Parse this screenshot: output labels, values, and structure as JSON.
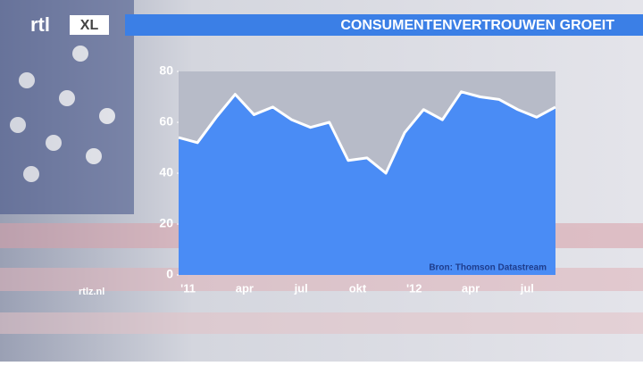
{
  "logo": {
    "main": "rtl",
    "badge": "XL"
  },
  "website": "rtlz.nl",
  "chart_data": {
    "type": "area",
    "title": "CONSUMENTENVERTROUWEN GROEIT",
    "source": "Bron: Thomson Datastream",
    "categories": [
      "'11",
      null,
      null,
      "apr",
      null,
      null,
      "jul",
      null,
      null,
      "okt",
      null,
      null,
      "'12",
      null,
      null,
      "apr",
      null,
      null,
      "jul",
      null,
      null
    ],
    "values": [
      54,
      52,
      62,
      71,
      63,
      66,
      61,
      58,
      60,
      45,
      46,
      40,
      56,
      65,
      61,
      72,
      70,
      69,
      65,
      62,
      66
    ],
    "color": "#4a8cf5",
    "line_color": "#ffffff",
    "ylim": [
      0,
      80
    ],
    "yticks": [
      0,
      20,
      40,
      60,
      80
    ]
  }
}
